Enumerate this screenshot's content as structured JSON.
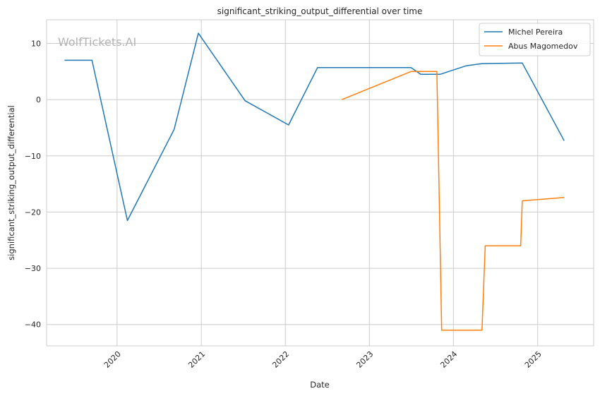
{
  "watermark": "WolfTickets.AI",
  "chart_data": {
    "type": "line",
    "title": "significant_striking_output_differential over time",
    "xlabel": "Date",
    "ylabel": "significant_striking_output_differential",
    "xlim": [
      "2019-03-01",
      "2025-09-01"
    ],
    "ylim": [
      -43.8,
      14.2
    ],
    "x_ticks": [
      "2020",
      "2021",
      "2022",
      "2023",
      "2024",
      "2025"
    ],
    "y_ticks": [
      10,
      0,
      -10,
      -20,
      -30,
      -40
    ],
    "y_tick_labels": [
      "10",
      "0",
      "−10",
      "−20",
      "−30",
      "−40"
    ],
    "grid": true,
    "legend_position": "top-right",
    "series": [
      {
        "name": "Michel Pereira",
        "color": "#1f77b4",
        "points": [
          [
            "2019-05-18",
            7.0
          ],
          [
            "2019-09-14",
            7.0
          ],
          [
            "2020-02-15",
            -21.5
          ],
          [
            "2020-09-05",
            -5.3
          ],
          [
            "2020-12-19",
            11.8
          ],
          [
            "2021-07-10",
            -0.2
          ],
          [
            "2022-01-15",
            -4.5
          ],
          [
            "2022-05-21",
            5.7
          ],
          [
            "2023-07-01",
            5.7
          ],
          [
            "2023-08-12",
            4.5
          ],
          [
            "2023-11-04",
            4.5
          ],
          [
            "2024-02-24",
            6.0
          ],
          [
            "2024-05-04",
            6.4
          ],
          [
            "2024-10-26",
            6.5
          ],
          [
            "2025-04-26",
            -7.3
          ]
        ]
      },
      {
        "name": "Abus Magomedov",
        "color": "#ff7f0e",
        "points": [
          [
            "2022-09-03",
            0.0
          ],
          [
            "2023-07-01",
            5.0
          ],
          [
            "2023-10-21",
            5.0
          ],
          [
            "2023-11-11",
            -41.0
          ],
          [
            "2024-05-04",
            -41.0
          ],
          [
            "2024-05-18",
            -26.0
          ],
          [
            "2024-10-19",
            -26.0
          ],
          [
            "2024-10-26",
            -18.0
          ],
          [
            "2025-04-26",
            -17.4
          ]
        ]
      }
    ]
  }
}
